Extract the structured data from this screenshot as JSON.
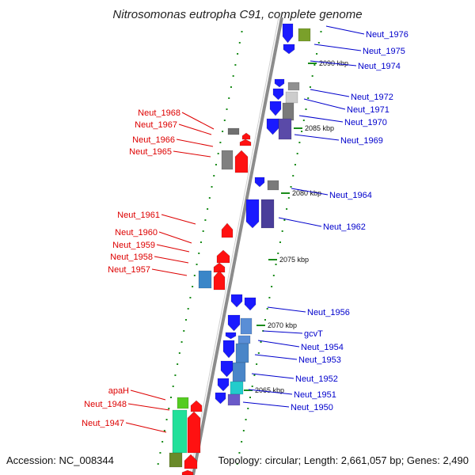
{
  "title": "Nitrosomonas eutropha C91, complete genome",
  "accession": "Accession: NC_008344",
  "topology": "Topology: circular; Length: 2,661,057 bp; Genes: 2,490",
  "colors": {
    "forward_label": "#dd0000",
    "reverse_label": "#0000cc",
    "backbone": "#8c8c8c",
    "tick": "#1a8c1a",
    "forward_gene": "#ff1111",
    "reverse_gene": "#1a1aff"
  },
  "kbp_labels": [
    {
      "text": "2090 kbp"
    },
    {
      "text": "2085 kbp"
    },
    {
      "text": "2080 kbp"
    },
    {
      "text": "2075 kbp"
    },
    {
      "text": "2070 kbp"
    },
    {
      "text": "2065 kbp"
    }
  ],
  "reverse_strand_labels": [
    {
      "text": "Neut_1976"
    },
    {
      "text": "Neut_1975"
    },
    {
      "text": "Neut_1974"
    },
    {
      "text": "Neut_1972"
    },
    {
      "text": "Neut_1971"
    },
    {
      "text": "Neut_1970"
    },
    {
      "text": "Neut_1969"
    },
    {
      "text": "Neut_1964"
    },
    {
      "text": "Neut_1962"
    },
    {
      "text": "Neut_1956"
    },
    {
      "text": "gcvT"
    },
    {
      "text": "Neut_1954"
    },
    {
      "text": "Neut_1953"
    },
    {
      "text": "Neut_1952"
    },
    {
      "text": "Neut_1951"
    },
    {
      "text": "Neut_1950"
    }
  ],
  "forward_strand_labels": [
    {
      "text": "Neut_1968"
    },
    {
      "text": "Neut_1967"
    },
    {
      "text": "Neut_1966"
    },
    {
      "text": "Neut_1965"
    },
    {
      "text": "Neut_1961"
    },
    {
      "text": "Neut_1960"
    },
    {
      "text": "Neut_1959"
    },
    {
      "text": "Neut_1958"
    },
    {
      "text": "Neut_1957"
    },
    {
      "text": "apaH"
    },
    {
      "text": "Neut_1948"
    },
    {
      "text": "Neut_1947"
    }
  ]
}
